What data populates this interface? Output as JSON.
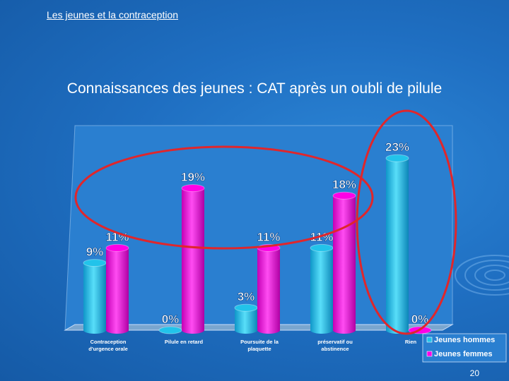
{
  "slide": {
    "top_title": "Les jeunes et la contraception",
    "title": "Connaissances des jeunes : CAT après un oubli de pilule",
    "number": "20"
  },
  "colors": {
    "men": "#22c3ea",
    "women": "#ff00e6",
    "highlight": "#e0262b"
  },
  "chart_data": {
    "type": "bar",
    "title": "",
    "xlabel": "",
    "ylabel": "",
    "ylim": [
      0,
      25
    ],
    "grid": false,
    "legend_position": "bottom-right",
    "categories": [
      [
        "Contraception",
        "d'urgence orale"
      ],
      [
        "Pilule en retard"
      ],
      [
        "Poursuite de la",
        "plaquette"
      ],
      [
        "préservatif ou",
        "abstinence"
      ],
      [
        "Rien"
      ]
    ],
    "series": [
      {
        "name": "Jeunes hommes",
        "values": [
          9,
          0,
          3,
          11,
          23
        ],
        "labels": [
          "9%",
          "0%",
          "3%",
          "11%",
          "23%"
        ]
      },
      {
        "name": "Jeunes femmes",
        "values": [
          11,
          19,
          11,
          18,
          0
        ],
        "labels": [
          "11%",
          "19%",
          "11%",
          "18%",
          "0%"
        ]
      }
    ]
  }
}
